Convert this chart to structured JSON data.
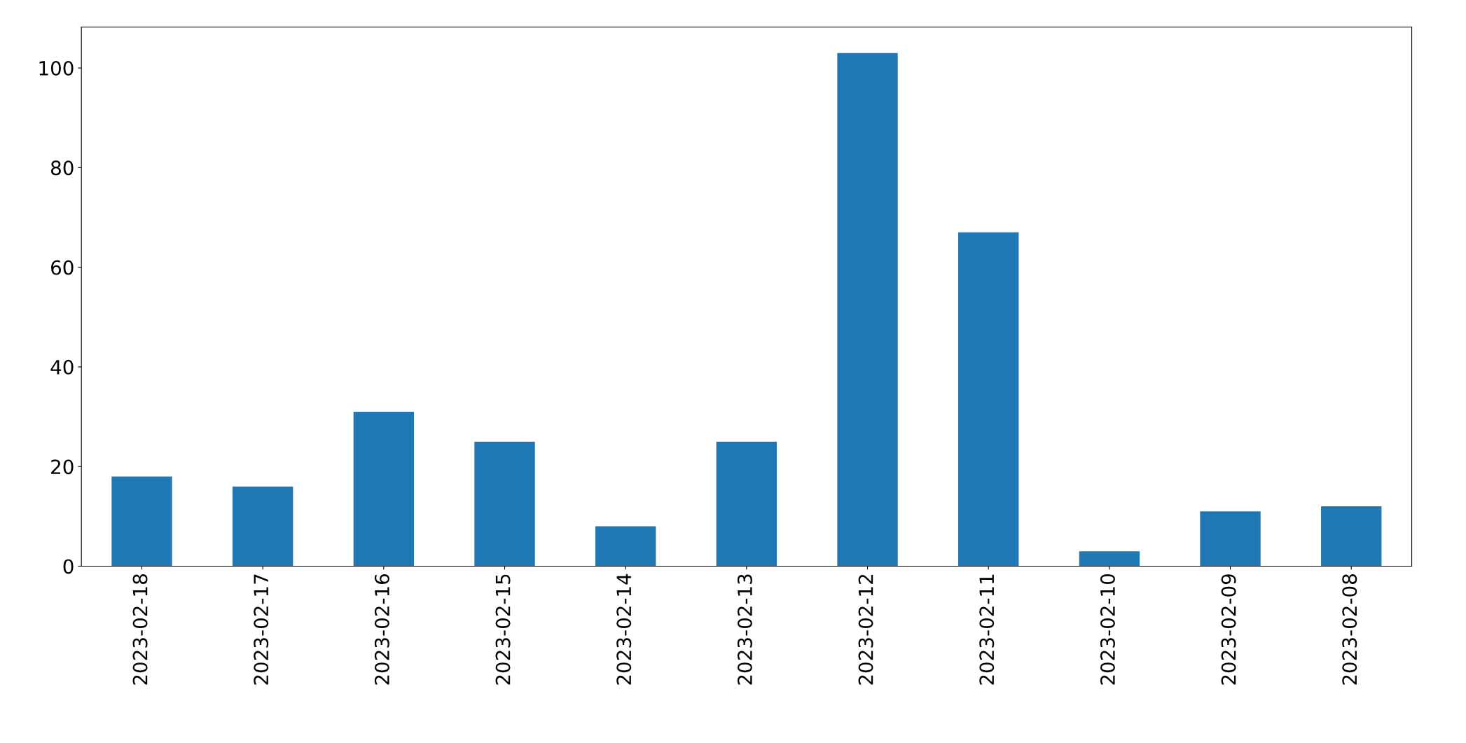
{
  "chart_data": {
    "type": "bar",
    "categories": [
      "2023-02-18",
      "2023-02-17",
      "2023-02-16",
      "2023-02-15",
      "2023-02-14",
      "2023-02-13",
      "2023-02-12",
      "2023-02-11",
      "2023-02-10",
      "2023-02-09",
      "2023-02-08"
    ],
    "values": [
      18,
      16,
      31,
      25,
      8,
      25,
      103,
      67,
      3,
      11,
      12
    ],
    "color": "#1f77b4",
    "ylim": [
      0,
      108.2
    ],
    "yticks": [
      0,
      20,
      40,
      60,
      80,
      100
    ],
    "grid": false,
    "legend": false
  }
}
